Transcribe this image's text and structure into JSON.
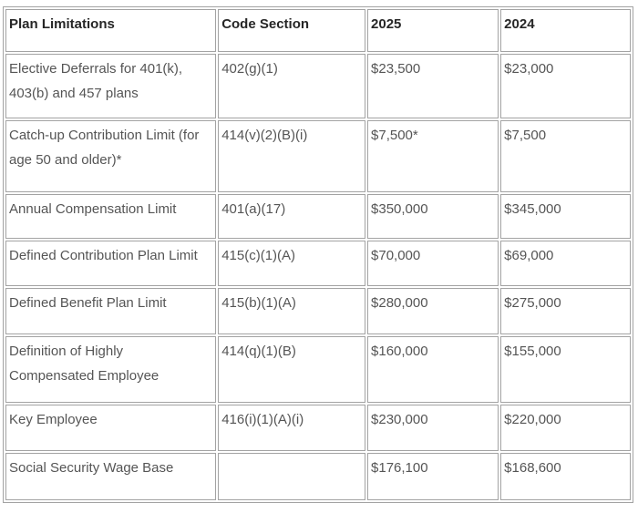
{
  "table": {
    "columns": [
      {
        "label": "Plan Limitations"
      },
      {
        "label": "Code Section"
      },
      {
        "label": "2025"
      },
      {
        "label": "2024"
      }
    ],
    "rows": [
      {
        "plan": "Elective Deferrals for 401(k), 403(b) and 457 plans",
        "code": "402(g)(1)",
        "y2025": "$23,500",
        "y2024": "$23,000"
      },
      {
        "plan": "Catch-up Contribution Limit (for age 50 and older)*",
        "code": "414(v)(2)(B)(i)",
        "y2025": "$7,500*",
        "y2024": "$7,500"
      },
      {
        "plan": "Annual Compensation Limit",
        "code": "401(a)(17)",
        "y2025": "$350,000",
        "y2024": "$345,000"
      },
      {
        "plan": "Defined Contribution Plan Limit",
        "code": "415(c)(1)(A)",
        "y2025": "$70,000",
        "y2024": "$69,000"
      },
      {
        "plan": "Defined Benefit Plan Limit",
        "code": "415(b)(1)(A)",
        "y2025": "$280,000",
        "y2024": "$275,000"
      },
      {
        "plan": "Definition of Highly Compensated Employee",
        "code": "414(q)(1)(B)",
        "y2025": "$160,000",
        "y2024": "$155,000"
      },
      {
        "plan": "Key Employee",
        "code": "416(i)(1)(A)(i)",
        "y2025": "$230,000",
        "y2024": "$220,000"
      },
      {
        "plan": "Social Security Wage Base",
        "code": "",
        "y2025": "$176,100",
        "y2024": "$168,600"
      }
    ]
  },
  "colors": {
    "border": "#a3a3a3",
    "header_text": "#262626",
    "body_text": "#555555",
    "background": "#ffffff"
  }
}
